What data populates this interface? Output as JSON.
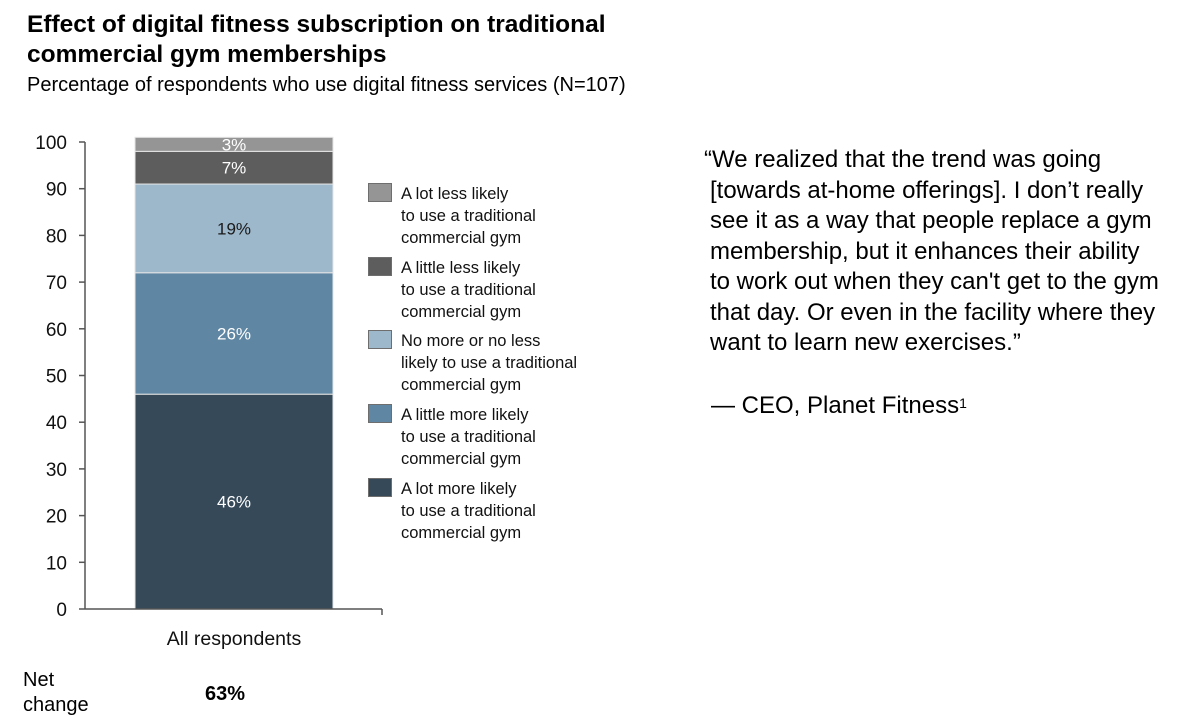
{
  "chart_data": {
    "type": "stacked-bar",
    "title": "Effect of digital fitness subscription on traditional commercial gym memberships",
    "subtitle": "Percentage of respondents who use digital fitness services (N=107)",
    "categories": [
      "All respondents"
    ],
    "ylim": [
      0,
      100
    ],
    "yticks": [
      0,
      10,
      20,
      30,
      40,
      50,
      60,
      70,
      80,
      90,
      100
    ],
    "series": [
      {
        "name": "A lot more likely to use a traditional commercial gym",
        "legend_lines": [
          "A lot more likely",
          "to use a traditional",
          "commercial gym"
        ],
        "values": [
          46
        ],
        "label": "46%",
        "color": "#354959",
        "label_color": "#ffffff"
      },
      {
        "name": "A little more likely to use a traditional commercial gym",
        "legend_lines": [
          "A little more likely",
          "to use a traditional",
          "commercial gym"
        ],
        "values": [
          26
        ],
        "label": "26%",
        "color": "#5f86a3",
        "label_color": "#ffffff"
      },
      {
        "name": "No more or no less likely to use a traditional commercial gym",
        "legend_lines": [
          "No more or no less",
          "likely to use a traditional",
          "commercial gym"
        ],
        "values": [
          19
        ],
        "label": "19%",
        "color": "#9db7cb",
        "label_color": "#1a1a1a"
      },
      {
        "name": "A little less likely to use a traditional commercial gym",
        "legend_lines": [
          "A little less likely",
          "to use a traditional",
          "commercial gym"
        ],
        "values": [
          7
        ],
        "label": "7%",
        "color": "#5d5d5d",
        "label_color": "#ffffff"
      },
      {
        "name": "A lot less likely to use a traditional commercial gym",
        "legend_lines": [
          "A lot less likely",
          "to use a traditional",
          "commercial gym"
        ],
        "values": [
          3
        ],
        "label": "3%",
        "color": "#959595",
        "label_color": "#ffffff"
      }
    ],
    "legend_order": [
      4,
      3,
      2,
      1,
      0
    ],
    "net_change": {
      "label_lines": [
        "Net",
        "change"
      ],
      "value": "63%"
    }
  },
  "quote": {
    "lines": [
      "“We realized that the trend was going",
      "[towards at-home offerings]. I don’t really",
      "see it as a way that people replace a gym",
      "membership, but it enhances their ability",
      "to work out when they can't get to the gym",
      "that day. Or even in the facility where they",
      "want to learn new exercises.”"
    ],
    "attribution": "— CEO, Planet Fitness",
    "footnote": "1"
  }
}
